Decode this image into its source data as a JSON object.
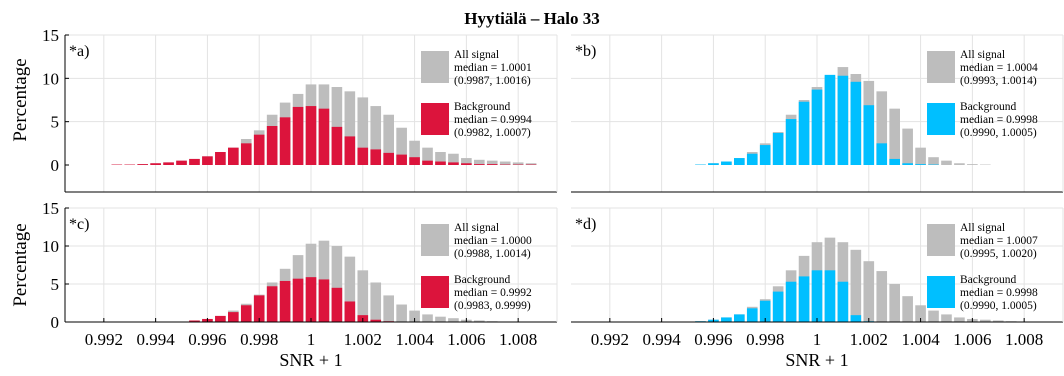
{
  "title": "Hyytiälä – Halo 33",
  "colors": {
    "grid": "#e3e3e3",
    "all_signal": "#bdbdbd",
    "background_left": "#dc143c",
    "background_right": "#00bfff",
    "axis": "#000000"
  },
  "chart_data": [
    {
      "type": "bar",
      "panel_label": "*a)",
      "xlabel": "",
      "ylabel": "Percentage",
      "xlim": [
        0.9905,
        1.0095
      ],
      "ylim": [
        0,
        15
      ],
      "xticks": [],
      "yticks": [
        "0",
        "5",
        "10",
        "15"
      ],
      "grid": true,
      "legend_position": "right",
      "bin_width": 0.0005,
      "x": [
        0.9925,
        0.993,
        0.9935,
        0.994,
        0.9945,
        0.995,
        0.9955,
        0.996,
        0.9965,
        0.997,
        0.9975,
        0.998,
        0.9985,
        0.999,
        0.9995,
        1.0,
        1.0005,
        1.001,
        1.0015,
        1.002,
        1.0025,
        1.003,
        1.0035,
        1.004,
        1.0045,
        1.005,
        1.0055,
        1.006,
        1.0065,
        1.007,
        1.0075,
        1.008,
        1.0085
      ],
      "series": [
        {
          "name": "All signal",
          "stats": [
            "median = 1.0001",
            "(0.9987, 1.0016)"
          ],
          "values": [
            0.05,
            0.05,
            0.1,
            0.2,
            0.3,
            0.5,
            0.7,
            1.0,
            1.5,
            2.0,
            3.0,
            4.0,
            5.8,
            7.2,
            8.2,
            9.3,
            9.3,
            9.0,
            8.5,
            7.8,
            6.8,
            5.8,
            4.3,
            2.8,
            2.0,
            1.5,
            1.3,
            0.8,
            0.6,
            0.5,
            0.4,
            0.3,
            0.2
          ]
        },
        {
          "name": "Background",
          "stats": [
            "median = 0.9994",
            "(0.9982, 1.0007)"
          ],
          "values": [
            0.05,
            0.05,
            0.1,
            0.2,
            0.3,
            0.5,
            0.7,
            1.0,
            1.5,
            2.0,
            2.5,
            3.5,
            4.5,
            5.5,
            6.7,
            6.8,
            6.5,
            4.4,
            3.3,
            2.0,
            1.8,
            1.4,
            1.2,
            0.9,
            0.5,
            0.4,
            0.3,
            0.2,
            0.1,
            0.1,
            0.05,
            0.05,
            0.05
          ]
        }
      ]
    },
    {
      "type": "bar",
      "panel_label": "*b)",
      "xlabel": "",
      "ylabel": "",
      "xlim": [
        0.9905,
        1.0095
      ],
      "ylim": [
        0,
        15
      ],
      "xticks": [],
      "yticks": [],
      "grid": true,
      "legend_position": "right",
      "bin_width": 0.0005,
      "x": [
        0.9925,
        0.993,
        0.9935,
        0.994,
        0.9945,
        0.995,
        0.9955,
        0.996,
        0.9965,
        0.997,
        0.9975,
        0.998,
        0.9985,
        0.999,
        0.9995,
        1.0,
        1.0005,
        1.001,
        1.0015,
        1.002,
        1.0025,
        1.003,
        1.0035,
        1.004,
        1.0045,
        1.005,
        1.0055,
        1.006,
        1.0065,
        1.007,
        1.0075,
        1.008,
        1.0085
      ],
      "series": [
        {
          "name": "All signal",
          "stats": [
            "median = 1.0004",
            "(0.9993, 1.0014)"
          ],
          "values": [
            0,
            0,
            0,
            0,
            0,
            0,
            0.05,
            0.2,
            0.4,
            0.8,
            1.5,
            2.5,
            3.8,
            5.8,
            7.5,
            9.0,
            10.2,
            11.3,
            10.5,
            9.7,
            8.5,
            6.5,
            4.2,
            2.0,
            0.9,
            0.5,
            0.2,
            0.1,
            0.05,
            0,
            0,
            0,
            0
          ]
        },
        {
          "name": "Background",
          "stats": [
            "median = 0.9998",
            "(0.9990, 1.0005)"
          ],
          "values": [
            0,
            0,
            0,
            0,
            0,
            0,
            0.05,
            0.2,
            0.4,
            0.8,
            1.3,
            2.3,
            3.7,
            5.3,
            7.3,
            8.7,
            10.4,
            10.3,
            9.6,
            6.9,
            2.5,
            0.7,
            0.2,
            0.1,
            0.05,
            0,
            0,
            0,
            0,
            0,
            0,
            0,
            0
          ]
        }
      ]
    },
    {
      "type": "bar",
      "panel_label": "*c)",
      "xlabel": "SNR + 1",
      "ylabel": "Percentage",
      "xlim": [
        0.9905,
        1.0095
      ],
      "ylim": [
        0,
        15
      ],
      "xticks": [
        "0.992",
        "0.994",
        "0.996",
        "0.998",
        "1",
        "1.002",
        "1.004",
        "1.006",
        "1.008"
      ],
      "xtick_values": [
        0.992,
        0.994,
        0.996,
        0.998,
        1.0,
        1.002,
        1.004,
        1.006,
        1.008
      ],
      "yticks": [
        "0",
        "5",
        "10",
        "15"
      ],
      "grid": true,
      "legend_position": "right",
      "bin_width": 0.0005,
      "x": [
        0.9925,
        0.993,
        0.9935,
        0.994,
        0.9945,
        0.995,
        0.9955,
        0.996,
        0.9965,
        0.997,
        0.9975,
        0.998,
        0.9985,
        0.999,
        0.9995,
        1.0,
        1.0005,
        1.001,
        1.0015,
        1.002,
        1.0025,
        1.003,
        1.0035,
        1.004,
        1.0045,
        1.005,
        1.0055,
        1.006,
        1.0065,
        1.007,
        1.0075,
        1.008,
        1.0085
      ],
      "series": [
        {
          "name": "All signal",
          "stats": [
            "median = 1.0000",
            "(0.9988, 1.0014)"
          ],
          "values": [
            0,
            0,
            0,
            0,
            0,
            0,
            0.2,
            0.4,
            0.8,
            1.5,
            2.4,
            3.6,
            5.2,
            7.0,
            8.8,
            10.3,
            10.7,
            10.0,
            8.6,
            6.8,
            5.2,
            3.5,
            2.3,
            1.5,
            1.0,
            0.7,
            0.5,
            0.3,
            0.2,
            0.1,
            0.05,
            0,
            0
          ]
        },
        {
          "name": "Background",
          "stats": [
            "median = 0.9992",
            "(0.9983, 0.9999)"
          ],
          "values": [
            0,
            0,
            0,
            0,
            0,
            0,
            0.2,
            0.4,
            0.8,
            1.3,
            2.2,
            3.5,
            4.7,
            5.4,
            5.7,
            5.9,
            5.6,
            4.5,
            2.7,
            0.9,
            0.3,
            0.1,
            0.05,
            0,
            0,
            0,
            0,
            0,
            0,
            0,
            0,
            0,
            0
          ]
        }
      ]
    },
    {
      "type": "bar",
      "panel_label": "*d)",
      "xlabel": "SNR + 1",
      "ylabel": "",
      "xlim": [
        0.9905,
        1.0095
      ],
      "ylim": [
        0,
        15
      ],
      "xticks": [
        "0.992",
        "0.994",
        "0.996",
        "0.998",
        "1",
        "1.002",
        "1.004",
        "1.006",
        "1.008"
      ],
      "xtick_values": [
        0.992,
        0.994,
        0.996,
        0.998,
        1.0,
        1.002,
        1.004,
        1.006,
        1.008
      ],
      "yticks": [],
      "grid": true,
      "legend_position": "right",
      "bin_width": 0.0005,
      "x": [
        0.9925,
        0.993,
        0.9935,
        0.994,
        0.9945,
        0.995,
        0.9955,
        0.996,
        0.9965,
        0.997,
        0.9975,
        0.998,
        0.9985,
        0.999,
        0.9995,
        1.0,
        1.0005,
        1.001,
        1.0015,
        1.002,
        1.0025,
        1.003,
        1.0035,
        1.004,
        1.0045,
        1.005,
        1.0055,
        1.006,
        1.0065,
        1.007,
        1.0075,
        1.008,
        1.0085
      ],
      "series": [
        {
          "name": "All signal",
          "stats": [
            "median = 1.0007",
            "(0.9995, 1.0020)"
          ],
          "values": [
            0,
            0,
            0,
            0,
            0,
            0,
            0.1,
            0.3,
            0.6,
            1.0,
            2.0,
            3.0,
            4.7,
            6.8,
            8.7,
            10.5,
            11.1,
            10.5,
            9.5,
            8.0,
            6.7,
            5.0,
            3.4,
            2.2,
            1.5,
            1.0,
            0.6,
            0.4,
            0.3,
            0.2,
            0.1,
            0.05,
            0
          ]
        },
        {
          "name": "Background",
          "stats": [
            "median = 0.9998",
            "(0.9990, 1.0005)"
          ],
          "values": [
            0,
            0,
            0,
            0,
            0,
            0,
            0.1,
            0.3,
            0.6,
            1.0,
            1.8,
            2.8,
            4.0,
            5.3,
            6.0,
            6.8,
            6.8,
            5.3,
            0.9,
            0.1,
            0.05,
            0,
            0,
            0,
            0,
            0,
            0,
            0,
            0,
            0,
            0,
            0,
            0
          ]
        }
      ]
    }
  ]
}
